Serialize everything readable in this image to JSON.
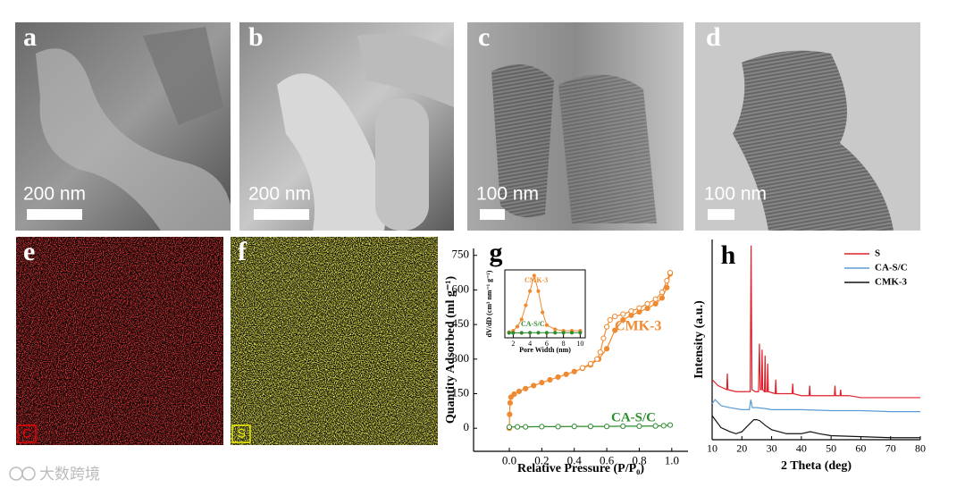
{
  "panels": [
    {
      "label": "a",
      "scale_bar": "200 nm"
    },
    {
      "label": "b",
      "scale_bar": "200 nm"
    },
    {
      "label": "c",
      "scale_bar": "100 nm"
    },
    {
      "label": "d",
      "scale_bar": "100 nm"
    },
    {
      "label": "e",
      "element": "C"
    },
    {
      "label": "f",
      "element": "S"
    }
  ],
  "chart_data": [
    {
      "type": "line",
      "label": "g",
      "xlabel": "Relative Pressure (P/P₀)",
      "ylabel": "Quantity Adsorbed (ml g⁻¹)",
      "xlim": [
        -0.22,
        1.1
      ],
      "ylim": [
        -100,
        780
      ],
      "xticks": [
        {
          "value": 0,
          "label": "0.0"
        },
        {
          "value": 0.2,
          "label": "0.2"
        },
        {
          "value": 0.4,
          "label": "0.4"
        },
        {
          "value": 0.6,
          "label": "0.6"
        },
        {
          "value": 0.8,
          "label": "0.8"
        },
        {
          "value": 1,
          "label": "1.0"
        }
      ],
      "yticks": [
        0,
        150,
        300,
        450,
        600,
        750
      ],
      "series": [
        {
          "name": "CMK-3",
          "color": "#f08a30",
          "x": [
            0,
            0.002,
            0.005,
            0.01,
            0.03,
            0.06,
            0.1,
            0.15,
            0.2,
            0.25,
            0.3,
            0.35,
            0.4,
            0.45,
            0.5,
            0.55,
            0.6,
            0.65,
            0.7,
            0.75,
            0.8,
            0.85,
            0.9,
            0.94,
            0.97,
            0.99
          ],
          "values": [
            0,
            60,
            110,
            135,
            148,
            160,
            172,
            185,
            198,
            210,
            222,
            234,
            246,
            260,
            275,
            300,
            345,
            425,
            470,
            490,
            505,
            520,
            540,
            565,
            610,
            670
          ],
          "x_desorption": [
            0.99,
            0.97,
            0.94,
            0.9,
            0.85,
            0.8,
            0.75,
            0.7,
            0.65,
            0.62,
            0.6,
            0.58,
            0.56,
            0.54,
            0.5,
            0.45
          ],
          "values_desorption": [
            675,
            640,
            590,
            560,
            540,
            522,
            508,
            495,
            485,
            470,
            440,
            390,
            330,
            300,
            280,
            262
          ]
        },
        {
          "name": "CA-S/C",
          "color": "#2e8b2e",
          "x": [
            0,
            0.05,
            0.1,
            0.2,
            0.3,
            0.4,
            0.5,
            0.6,
            0.7,
            0.8,
            0.9,
            0.95,
            0.99
          ],
          "values": [
            5,
            6,
            6,
            7,
            7,
            8,
            8,
            8,
            9,
            9,
            10,
            11,
            14
          ]
        }
      ]
    },
    {
      "type": "line",
      "xlabel": "Pore Width (nm)",
      "ylabel": "dV/dD (cm³ nm⁻¹ g⁻¹)",
      "xlim": [
        1,
        10.6
      ],
      "ylim": [
        -0.03,
        0.45
      ],
      "xticks": [
        2,
        4,
        6,
        8,
        10
      ],
      "series": [
        {
          "name": "CMK-3",
          "color": "#f08a30",
          "x": [
            1.5,
            2,
            2.5,
            3,
            3.5,
            4,
            4.5,
            5,
            5.5,
            6,
            7,
            8,
            9,
            10
          ],
          "values": [
            0.01,
            0.02,
            0.05,
            0.1,
            0.2,
            0.3,
            0.41,
            0.3,
            0.15,
            0.06,
            0.03,
            0.02,
            0.02,
            0.02
          ]
        },
        {
          "name": "CA-S/C",
          "color": "#2e8b2e",
          "x": [
            1.5,
            2,
            3,
            4,
            5,
            6,
            7,
            8,
            9,
            10
          ],
          "values": [
            0.005,
            0.005,
            0.005,
            0.006,
            0.006,
            0.006,
            0.006,
            0.006,
            0.006,
            0.006
          ]
        }
      ]
    },
    {
      "type": "line",
      "label": "h",
      "xlabel": "2 Theta (deg)",
      "ylabel": "Intensity (a.u.)",
      "xlim": [
        10,
        80
      ],
      "ylim": [
        0,
        100
      ],
      "xticks": [
        10,
        20,
        30,
        40,
        50,
        60,
        70,
        80
      ],
      "legend": "upper right",
      "series": [
        {
          "name": "S",
          "color": "#e0202a",
          "x": [
            10,
            12,
            14.9,
            15.1,
            15.3,
            18,
            20,
            22.8,
            23.1,
            23.4,
            24.5,
            25.6,
            25.9,
            26.2,
            26.6,
            26.8,
            27.0,
            27.6,
            27.8,
            28.0,
            28.5,
            28.7,
            28.9,
            31.2,
            31.4,
            31.6,
            34,
            36.9,
            37.1,
            37.3,
            40,
            42.6,
            42.8,
            43,
            47,
            51.1,
            51.3,
            51.5,
            53,
            53.2,
            53.4,
            56,
            60,
            70,
            80
          ],
          "values": [
            30,
            27,
            25,
            33,
            25,
            24,
            24,
            24,
            97,
            25,
            24,
            24,
            48,
            25,
            25,
            45,
            25,
            24,
            42,
            24,
            24,
            38,
            24,
            23,
            30,
            23,
            23,
            23,
            28,
            23,
            22,
            22,
            27,
            22,
            22,
            22,
            27,
            22,
            22,
            25,
            22,
            22,
            21,
            21,
            21
          ]
        },
        {
          "name": "CA-S/C",
          "color": "#5b9bd5",
          "x": [
            10,
            11,
            13,
            16,
            20,
            22.5,
            23,
            23.5,
            25,
            28,
            30,
            40,
            50,
            60,
            70,
            80
          ],
          "values": [
            18,
            20,
            17,
            16,
            15,
            15,
            20,
            16,
            16,
            15.5,
            15,
            15,
            14.5,
            14.5,
            14,
            14
          ]
        },
        {
          "name": "CMK-3",
          "color": "#111111",
          "x": [
            10,
            11,
            13,
            16,
            18,
            20,
            22,
            24,
            25,
            26,
            28,
            30,
            35,
            40,
            43,
            46,
            50,
            60,
            70,
            80
          ],
          "values": [
            12,
            10,
            6,
            4,
            3,
            4,
            7,
            10,
            10,
            9.5,
            7,
            5,
            3,
            3,
            4,
            3,
            2,
            1.5,
            1,
            1
          ]
        }
      ]
    }
  ],
  "watermark": "大数跨境"
}
